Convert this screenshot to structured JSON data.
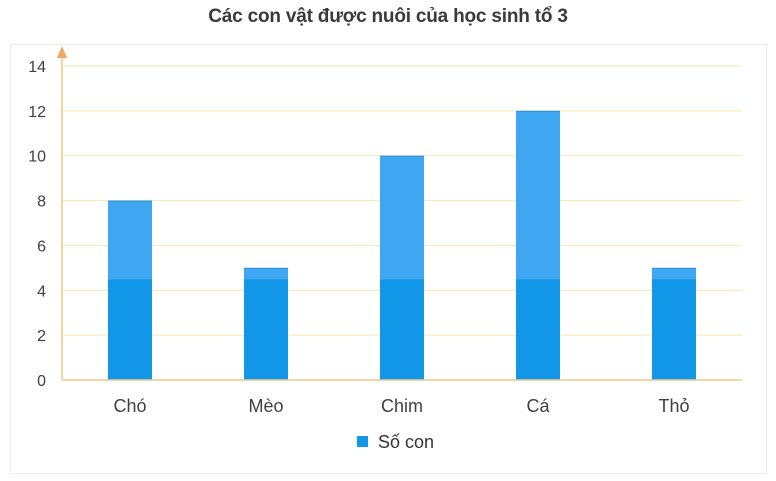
{
  "chart_data": {
    "type": "bar",
    "title": "Các con vật được nuôi của học sinh tổ 3",
    "xlabel": "",
    "ylabel": "",
    "categories": [
      "Chó",
      "Mèo",
      "Chim",
      "Cá",
      "Thỏ"
    ],
    "series": [
      {
        "name": "Số con",
        "values": [
          8,
          5,
          10,
          12,
          5
        ]
      }
    ],
    "ylim": [
      0,
      14
    ],
    "yticks": [
      0,
      2,
      4,
      6,
      8,
      10,
      12,
      14
    ],
    "grid": true,
    "legend": "bottom",
    "colors": {
      "bar_bottom": "#1296e8",
      "bar_top": "#3fa6f2",
      "grid": "#f6e6b0",
      "axis": "#f2c98a",
      "arrow": "#f0a860"
    }
  }
}
